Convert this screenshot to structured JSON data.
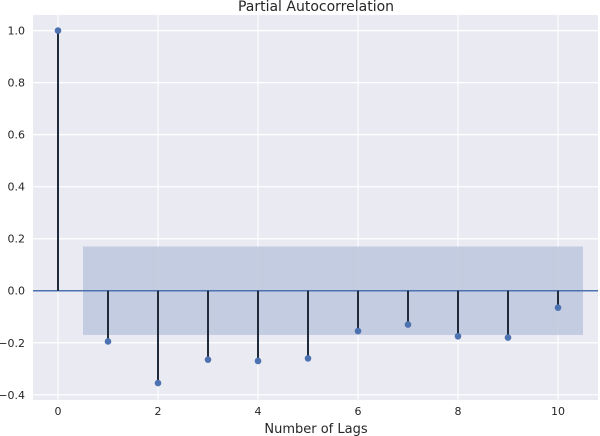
{
  "chart_data": {
    "type": "stem",
    "title": "Partial Autocorrelation",
    "xlabel": "Number of Lags",
    "ylabel": "",
    "x": [
      0,
      1,
      2,
      3,
      4,
      5,
      6,
      7,
      8,
      9,
      10
    ],
    "values": [
      1.0,
      -0.195,
      -0.355,
      -0.265,
      -0.27,
      -0.26,
      -0.155,
      -0.13,
      -0.175,
      -0.18,
      -0.065
    ],
    "confidence_band": {
      "lower": -0.17,
      "upper": 0.17,
      "x_from": 0.5,
      "x_to": 10.5
    },
    "xlim": [
      -0.5,
      10.8
    ],
    "ylim": [
      -0.42,
      1.06
    ],
    "xticks": [
      0,
      2,
      4,
      6,
      8,
      10
    ],
    "yticks": [
      -0.4,
      -0.2,
      0.0,
      0.2,
      0.4,
      0.6,
      0.8,
      1.0
    ],
    "ytick_labels": [
      "−0.4",
      "−0.2",
      "0.0",
      "0.2",
      "0.4",
      "0.6",
      "0.8",
      "1.0"
    ],
    "grid": true,
    "colors": {
      "background": "#EAEAF2",
      "grid": "#FFFFFF",
      "stem": "#1F2A3A",
      "marker": "#4C72B0",
      "zero_line": "#4C72B0",
      "band": "#C0C9E0"
    }
  }
}
